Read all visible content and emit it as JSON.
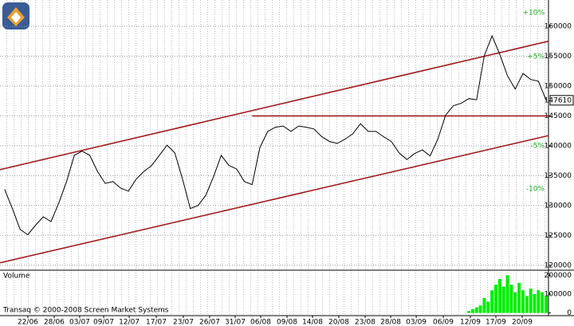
{
  "chart_data": [
    {
      "type": "line",
      "xlim": [
        -3.6,
        67.3
      ],
      "ylim": [
        119300,
        164400
      ],
      "yticks": [
        120000,
        125000,
        130000,
        135000,
        140000,
        145000,
        150000,
        155000,
        160000
      ],
      "grid": true,
      "series": [
        {
          "color": "#000000",
          "x": [
            -3,
            -2,
            -1,
            0,
            1,
            2,
            3,
            4,
            5,
            6,
            7,
            8,
            9,
            10,
            11,
            12,
            13,
            14,
            15,
            16,
            17,
            18,
            19,
            20,
            21,
            22,
            23,
            24,
            25,
            26,
            27,
            28,
            29,
            30,
            31,
            32,
            33,
            34,
            35,
            36,
            37,
            38,
            39,
            40,
            41,
            42,
            43,
            44,
            45,
            46,
            47,
            48,
            49,
            50,
            51,
            52,
            53,
            54,
            55,
            56,
            57,
            58,
            59,
            60,
            61,
            62,
            63,
            64,
            65,
            66,
            67
          ],
          "values": [
            132700,
            129500,
            126000,
            125100,
            126700,
            128100,
            127300,
            130400,
            134000,
            138400,
            139100,
            138400,
            135700,
            133700,
            134000,
            132900,
            132400,
            134400,
            135700,
            136700,
            138400,
            140100,
            138800,
            134400,
            129500,
            130000,
            131700,
            134800,
            138400,
            136700,
            136100,
            134000,
            133500,
            139700,
            142400,
            143100,
            143300,
            142400,
            143300,
            143100,
            142800,
            141500,
            140700,
            140400,
            141100,
            142000,
            143700,
            142400,
            142400,
            141500,
            140700,
            138800,
            137700,
            138700,
            139300,
            138300,
            141100,
            145100,
            146700,
            147100,
            147900,
            147700,
            155100,
            158400,
            155300,
            151700,
            149500,
            152100,
            151100,
            150800,
            147610
          ]
        }
      ],
      "lines": [
        {
          "color": "#a01e1e",
          "x": [
            -3.6,
            67.3
          ],
          "values": [
            136000,
            157500
          ]
        },
        {
          "color": "#a01e1e",
          "x": [
            -3.6,
            67.3
          ],
          "values": [
            120400,
            141700
          ]
        },
        {
          "color": "#a01e1e",
          "x": [
            29,
            67.3
          ],
          "values": [
            145000,
            145000
          ]
        }
      ],
      "annotations": [
        "+10%",
        "+5%",
        "-5%",
        "-10%"
      ]
    },
    {
      "type": "bar",
      "label": "Volume",
      "color": "#00ee00",
      "xlim": [
        -3.6,
        67.3
      ],
      "ylim": [
        -10000,
        210000
      ],
      "yticks": [
        0,
        100000,
        200000
      ],
      "x": [
        57,
        57.5,
        58,
        58.5,
        59,
        59.5,
        60,
        60.5,
        61,
        61.5,
        62,
        62.5,
        63,
        63.5,
        64,
        64.5,
        65,
        65.5,
        66,
        66.5,
        67
      ],
      "values": [
        10000,
        20000,
        30000,
        40000,
        80000,
        60000,
        120000,
        150000,
        180000,
        140000,
        200000,
        150000,
        110000,
        160000,
        120000,
        90000,
        130000,
        100000,
        120000,
        110000,
        90000
      ],
      "xticks": [
        {
          "value": 0,
          "label": "22/06"
        },
        {
          "value": 3.4,
          "label": "28/06"
        },
        {
          "value": 6.7,
          "label": "03/07"
        },
        {
          "value": 9.8,
          "label": "09/07"
        },
        {
          "value": 13.1,
          "label": "12/07"
        },
        {
          "value": 16.6,
          "label": "17/07"
        },
        {
          "value": 20.1,
          "label": "23/07"
        },
        {
          "value": 23.5,
          "label": "26/07"
        },
        {
          "value": 26.8,
          "label": "31/07"
        },
        {
          "value": 30.1,
          "label": "06/08"
        },
        {
          "value": 33.5,
          "label": "09/08"
        },
        {
          "value": 36.8,
          "label": "14/08"
        },
        {
          "value": 40.2,
          "label": "20/08"
        },
        {
          "value": 43.6,
          "label": "23/08"
        },
        {
          "value": 46.9,
          "label": "28/08"
        },
        {
          "value": 50.2,
          "label": "03/09"
        },
        {
          "value": 53.7,
          "label": "06/09"
        },
        {
          "value": 57.2,
          "label": "12/09"
        },
        {
          "value": 60.5,
          "label": "17/09"
        },
        {
          "value": 63.9,
          "label": "20/09"
        }
      ]
    }
  ],
  "footer": "Transaq © 2000-2008 Screen Market Systems"
}
